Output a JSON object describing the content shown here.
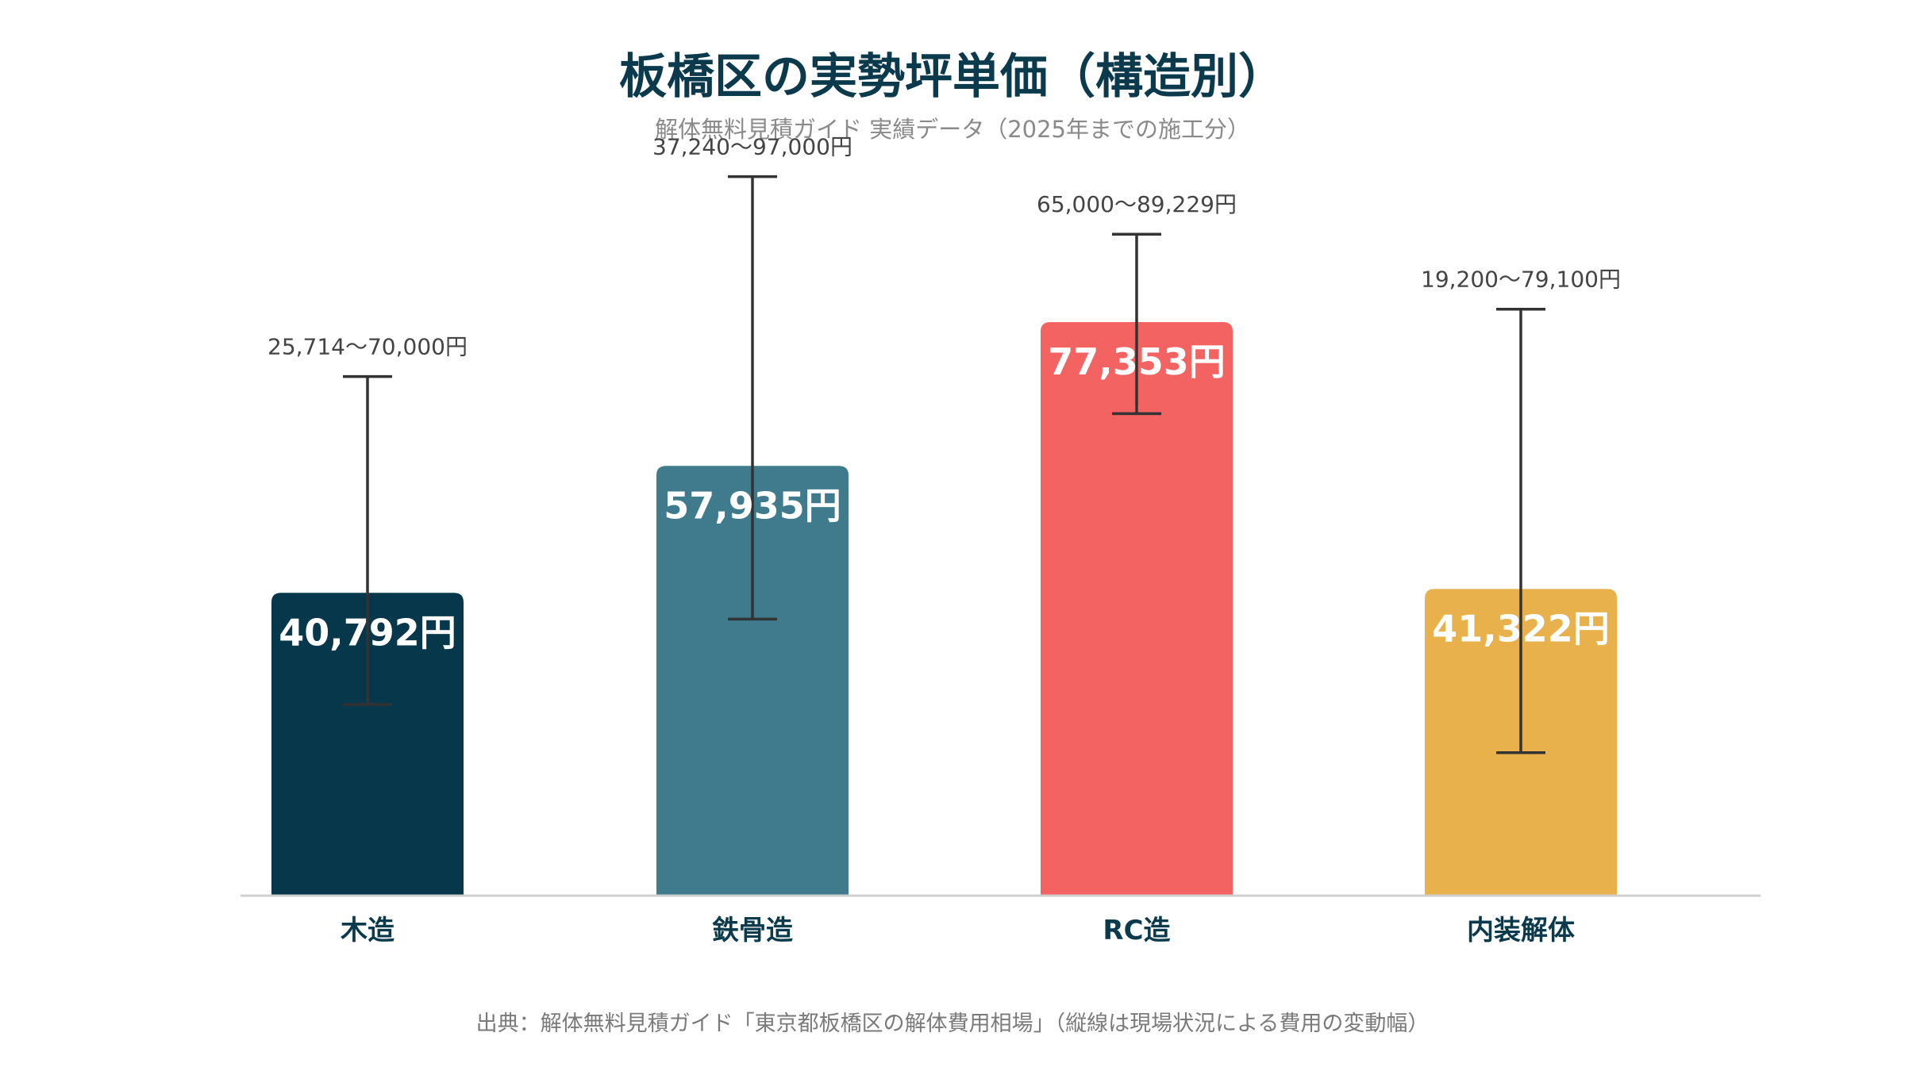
{
  "chart_data": {
    "type": "bar",
    "title": "板橋区の実勢坪単価（構造別）",
    "subtitle": "解体無料見積ガイド 実績データ（2025年までの施工分）",
    "source": "出典：解体無料見積ガイド「東京都板橋区の解体費用相場」（縦線は現場状況による費用の変動幅）",
    "categories": [
      "木造",
      "鉄骨造",
      "RC造",
      "内装解体"
    ],
    "values": [
      40792,
      57935,
      77353,
      41322
    ],
    "value_labels": [
      "40,792円",
      "57,935円",
      "77,353円",
      "41,322円"
    ],
    "ranges": [
      [
        25714,
        70000
      ],
      [
        37240,
        97000
      ],
      [
        65000,
        89229
      ],
      [
        19200,
        79100
      ]
    ],
    "range_labels": [
      "25,714〜70,000円",
      "37,240〜97,000円",
      "65,000〜89,229円",
      "19,200〜79,100円"
    ],
    "colors": [
      "#06374a",
      "#3f7b8c",
      "#f26361",
      "#e8b14c"
    ],
    "value_label_colors": [
      "#ffffff",
      "#ffffff",
      "#ffffff",
      "#ffffff"
    ],
    "xlabel": "",
    "ylabel": "",
    "ylim": [
      0,
      108000
    ],
    "grid": false,
    "legend": "none"
  }
}
